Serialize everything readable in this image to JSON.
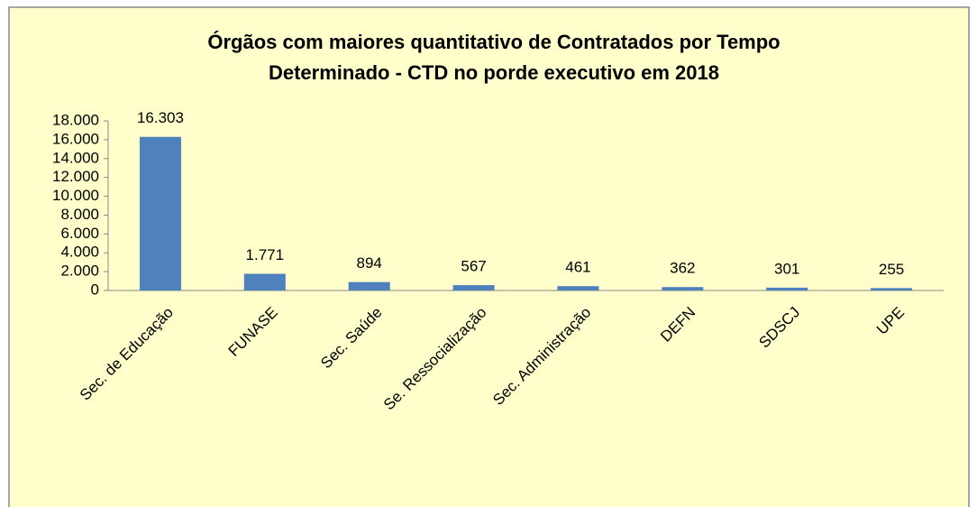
{
  "chart_data": {
    "type": "bar",
    "title": [
      "Órgãos com maiores quantitativo de Contratados por Tempo",
      "Determinado - CTD no porde executivo em 2018"
    ],
    "categories": [
      "Sec. de Educação",
      "FUNASE",
      "Sec. Saúde",
      "Se. Ressocialização",
      "Sec. Administração",
      "DEFN",
      "SDSCJ",
      "UPE"
    ],
    "values": [
      16303,
      1771,
      894,
      567,
      461,
      362,
      301,
      255
    ],
    "value_labels": [
      "16.303",
      "1.771",
      "894",
      "567",
      "461",
      "362",
      "301",
      "255"
    ],
    "color": "#4f81bd",
    "ylim": [
      0,
      18000
    ],
    "yticks": [
      0,
      {
        "value": 2000,
        "label": "2.000"
      },
      {
        "value": 4000,
        "label": "4.000"
      },
      {
        "value": 6000,
        "label": "6.000"
      },
      {
        "value": 8000,
        "label": "8.000"
      },
      {
        "value": 10000,
        "label": "10.000"
      },
      {
        "value": 12000,
        "label": "12.000"
      },
      {
        "value": 14000,
        "label": "14.000"
      },
      {
        "value": 16000,
        "label": "16.000"
      },
      {
        "value": 18000,
        "label": "18.000"
      }
    ],
    "grid": false
  }
}
